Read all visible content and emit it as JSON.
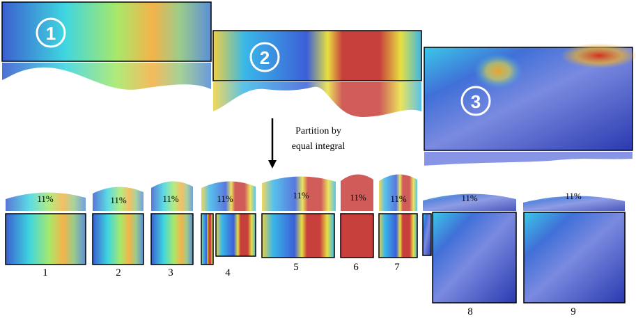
{
  "images": [
    {
      "label": "1"
    },
    {
      "label": "2"
    },
    {
      "label": "3"
    }
  ],
  "arrow_label": [
    "Partition by",
    "equal integral"
  ],
  "pieces": [
    {
      "share": "11%",
      "label": "1"
    },
    {
      "share": "11%",
      "label": "2"
    },
    {
      "share": "11%",
      "label": "3"
    },
    {
      "share": "11%",
      "label": "4"
    },
    {
      "share": "11%",
      "label": "5"
    },
    {
      "share": "11%",
      "label": "6"
    },
    {
      "share": "11%",
      "label": "7"
    },
    {
      "share": "11%",
      "label": "8"
    },
    {
      "share": "11%",
      "label": "9"
    }
  ]
}
